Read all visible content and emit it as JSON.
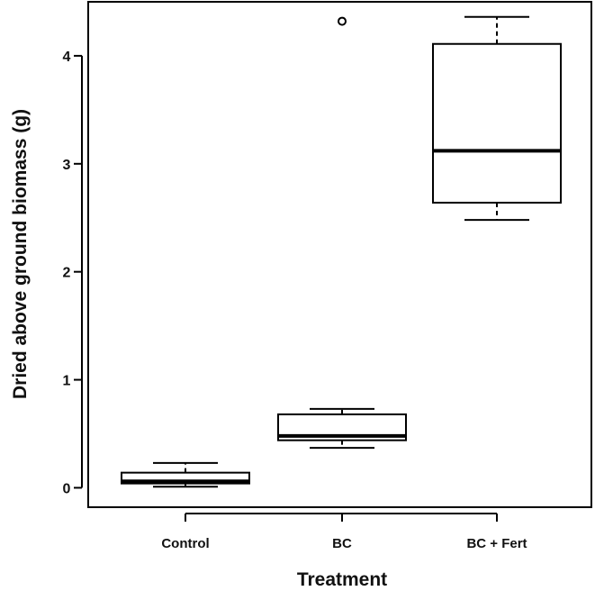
{
  "chart_data": {
    "type": "boxplot",
    "title": "",
    "xlabel": "Treatment",
    "ylabel": "Dried above ground biomass (g)",
    "ylim": [
      -0.18,
      4.5
    ],
    "yticks": [
      0,
      1,
      2,
      3,
      4
    ],
    "categories": [
      "Control",
      "BC",
      "BC + Fert"
    ],
    "boxes": [
      {
        "name": "Control",
        "whisker_low": 0.01,
        "q1": 0.04,
        "median": 0.06,
        "q3": 0.14,
        "whisker_high": 0.23,
        "outliers": []
      },
      {
        "name": "BC",
        "whisker_low": 0.37,
        "q1": 0.44,
        "median": 0.48,
        "q3": 0.68,
        "whisker_high": 0.73,
        "outliers": [
          4.32
        ]
      },
      {
        "name": "BC + Fert",
        "whisker_low": 2.48,
        "q1": 2.64,
        "median": 3.12,
        "q3": 4.11,
        "whisker_high": 4.36,
        "outliers": []
      }
    ],
    "grid": false,
    "legend": "none"
  }
}
